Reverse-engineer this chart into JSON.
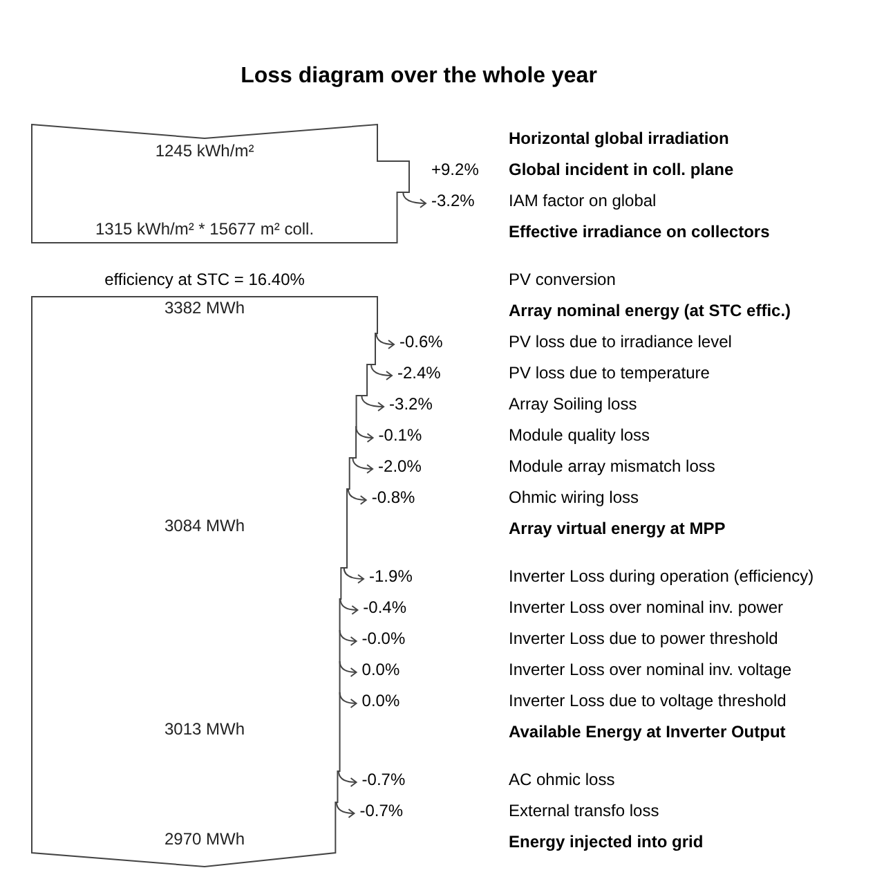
{
  "chart_data": {
    "type": "other",
    "title": "Loss diagram over the whole year",
    "categories": [
      "Horizontal global irradiation",
      "Global incident in coll. plane",
      "IAM factor on global",
      "Effective irradiance on collectors",
      "PV conversion",
      "Array nominal energy (at STC effic.)",
      "PV loss due to irradiance level",
      "PV loss due to temperature",
      "Array Soiling loss",
      "Module quality loss",
      "Module array mismatch loss",
      "Ohmic wiring loss",
      "Array virtual energy at MPP",
      "Inverter Loss during operation (efficiency)",
      "Inverter Loss over nominal inv. power",
      "Inverter Loss due to power threshold",
      "Inverter Loss over nominal inv. voltage",
      "Inverter Loss due to voltage threshold",
      "Available Energy at Inverter Output",
      "AC ohmic loss",
      "External transfo loss",
      "Energy injected into grid"
    ],
    "series": [
      {
        "values": [
          null,
          9.2,
          -3.2,
          null,
          null,
          null,
          -0.6,
          -2.4,
          -3.2,
          -0.1,
          -2.0,
          -0.8,
          null,
          -1.9,
          -0.4,
          -0.0,
          0.0,
          0.0,
          null,
          -0.7,
          -0.7,
          null
        ],
        "value_labels": [
          null,
          "+9.2%",
          "-3.2%",
          null,
          null,
          null,
          "-0.6%",
          "-2.4%",
          "-3.2%",
          "-0.1%",
          "-2.0%",
          "-0.8%",
          null,
          "-1.9%",
          "-0.4%",
          "-0.0%",
          "0.0%",
          "0.0%",
          null,
          "-0.7%",
          "-0.7%",
          null
        ]
      },
      {
        "values": [
          null,
          null,
          null,
          null,
          16.4,
          null,
          null,
          null,
          null,
          null,
          null,
          null,
          null,
          null,
          null,
          null,
          null,
          null,
          null,
          null,
          null,
          null
        ],
        "value_labels": [
          null,
          null,
          null,
          null,
          "efficiency at STC = 16.40%",
          null,
          null,
          null,
          null,
          null,
          null,
          null,
          null,
          null,
          null,
          null,
          null,
          null,
          null,
          null,
          null,
          null
        ]
      }
    ],
    "annotations": [
      "1245 kWh/m²",
      "1315 kWh/m² * 15677 m² coll.",
      "3382 MWh",
      "3084 MWh",
      "3013 MWh",
      "2970 MWh"
    ]
  }
}
